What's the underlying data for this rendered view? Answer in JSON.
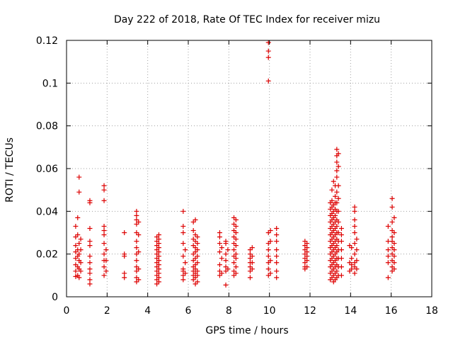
{
  "chart_data": {
    "type": "scatter",
    "title": "Day 222 of 2018, Rate Of TEC Index for receiver mizu",
    "xlabel": "GPS time / hours",
    "ylabel": "ROTI / TECUs",
    "xlim": [
      0,
      18
    ],
    "ylim": [
      0,
      0.12
    ],
    "xticks": [
      0,
      2,
      4,
      6,
      8,
      10,
      12,
      14,
      16,
      18
    ],
    "yticks": [
      0,
      0.02,
      0.04,
      0.06,
      0.08,
      0.1,
      0.12
    ],
    "xtick_labels": [
      "0",
      "2",
      "4",
      "6",
      "8",
      "10",
      "12",
      "14",
      "16",
      "18"
    ],
    "ytick_labels": [
      "0",
      "0.02",
      "0.04",
      "0.06",
      "0.08",
      "0.1",
      "0.12"
    ],
    "grid": true,
    "marker": "+",
    "color": "#dd0000",
    "points": [
      [
        0.45,
        0.0095
      ],
      [
        0.45,
        0.012
      ],
      [
        0.45,
        0.015
      ],
      [
        0.45,
        0.018
      ],
      [
        0.45,
        0.021
      ],
      [
        0.45,
        0.024
      ],
      [
        0.45,
        0.028
      ],
      [
        0.45,
        0.033
      ],
      [
        0.55,
        0.01
      ],
      [
        0.55,
        0.014
      ],
      [
        0.55,
        0.019
      ],
      [
        0.55,
        0.022
      ],
      [
        0.55,
        0.029
      ],
      [
        0.55,
        0.037
      ],
      [
        0.62,
        0.009
      ],
      [
        0.62,
        0.013
      ],
      [
        0.62,
        0.017
      ],
      [
        0.62,
        0.02
      ],
      [
        0.62,
        0.025
      ],
      [
        0.62,
        0.049
      ],
      [
        0.62,
        0.056
      ],
      [
        0.7,
        0.012
      ],
      [
        0.7,
        0.016
      ],
      [
        0.7,
        0.022
      ],
      [
        0.7,
        0.027
      ],
      [
        1.15,
        0.006
      ],
      [
        1.15,
        0.008
      ],
      [
        1.15,
        0.011
      ],
      [
        1.15,
        0.013
      ],
      [
        1.15,
        0.016
      ],
      [
        1.15,
        0.019
      ],
      [
        1.15,
        0.024
      ],
      [
        1.15,
        0.026
      ],
      [
        1.15,
        0.032
      ],
      [
        1.15,
        0.044
      ],
      [
        1.15,
        0.045
      ],
      [
        1.85,
        0.01
      ],
      [
        1.85,
        0.014
      ],
      [
        1.85,
        0.017
      ],
      [
        1.85,
        0.02
      ],
      [
        1.85,
        0.025
      ],
      [
        1.85,
        0.029
      ],
      [
        1.85,
        0.031
      ],
      [
        1.85,
        0.033
      ],
      [
        1.85,
        0.045
      ],
      [
        1.85,
        0.05
      ],
      [
        1.85,
        0.052
      ],
      [
        1.95,
        0.012
      ],
      [
        1.95,
        0.017
      ],
      [
        1.95,
        0.022
      ],
      [
        2.85,
        0.009
      ],
      [
        2.85,
        0.011
      ],
      [
        2.85,
        0.019
      ],
      [
        2.85,
        0.02
      ],
      [
        2.85,
        0.03
      ],
      [
        3.45,
        0.007
      ],
      [
        3.45,
        0.009
      ],
      [
        3.45,
        0.012
      ],
      [
        3.45,
        0.014
      ],
      [
        3.45,
        0.017
      ],
      [
        3.45,
        0.02
      ],
      [
        3.45,
        0.023
      ],
      [
        3.45,
        0.026
      ],
      [
        3.45,
        0.03
      ],
      [
        3.45,
        0.034
      ],
      [
        3.45,
        0.036
      ],
      [
        3.45,
        0.038
      ],
      [
        3.45,
        0.04
      ],
      [
        3.55,
        0.008
      ],
      [
        3.55,
        0.013
      ],
      [
        3.55,
        0.021
      ],
      [
        3.55,
        0.029
      ],
      [
        3.55,
        0.035
      ],
      [
        4.45,
        0.006
      ],
      [
        4.45,
        0.008
      ],
      [
        4.45,
        0.01
      ],
      [
        4.45,
        0.012
      ],
      [
        4.45,
        0.014
      ],
      [
        4.45,
        0.016
      ],
      [
        4.45,
        0.018
      ],
      [
        4.45,
        0.02
      ],
      [
        4.45,
        0.022
      ],
      [
        4.45,
        0.024
      ],
      [
        4.45,
        0.026
      ],
      [
        4.45,
        0.028
      ],
      [
        4.55,
        0.007
      ],
      [
        4.55,
        0.009
      ],
      [
        4.55,
        0.011
      ],
      [
        4.55,
        0.013
      ],
      [
        4.55,
        0.015
      ],
      [
        4.55,
        0.017
      ],
      [
        4.55,
        0.019
      ],
      [
        4.55,
        0.021
      ],
      [
        4.55,
        0.023
      ],
      [
        4.55,
        0.025
      ],
      [
        4.55,
        0.027
      ],
      [
        4.55,
        0.029
      ],
      [
        5.75,
        0.008
      ],
      [
        5.75,
        0.01
      ],
      [
        5.75,
        0.012
      ],
      [
        5.75,
        0.013
      ],
      [
        5.75,
        0.019
      ],
      [
        5.75,
        0.025
      ],
      [
        5.75,
        0.03
      ],
      [
        5.75,
        0.033
      ],
      [
        5.75,
        0.04
      ],
      [
        5.85,
        0.011
      ],
      [
        5.85,
        0.016
      ],
      [
        5.85,
        0.022
      ],
      [
        6.25,
        0.008
      ],
      [
        6.25,
        0.01
      ],
      [
        6.25,
        0.012
      ],
      [
        6.25,
        0.014
      ],
      [
        6.25,
        0.017
      ],
      [
        6.25,
        0.02
      ],
      [
        6.25,
        0.024
      ],
      [
        6.25,
        0.027
      ],
      [
        6.25,
        0.031
      ],
      [
        6.25,
        0.035
      ],
      [
        6.35,
        0.006
      ],
      [
        6.35,
        0.009
      ],
      [
        6.35,
        0.011
      ],
      [
        6.35,
        0.013
      ],
      [
        6.35,
        0.015
      ],
      [
        6.35,
        0.018
      ],
      [
        6.35,
        0.021
      ],
      [
        6.35,
        0.023
      ],
      [
        6.35,
        0.026
      ],
      [
        6.35,
        0.029
      ],
      [
        6.35,
        0.036
      ],
      [
        6.45,
        0.007
      ],
      [
        6.45,
        0.01
      ],
      [
        6.45,
        0.012
      ],
      [
        6.45,
        0.016
      ],
      [
        6.45,
        0.019
      ],
      [
        6.45,
        0.022
      ],
      [
        6.45,
        0.025
      ],
      [
        6.45,
        0.028
      ],
      [
        7.55,
        0.01
      ],
      [
        7.55,
        0.012
      ],
      [
        7.55,
        0.015
      ],
      [
        7.55,
        0.021
      ],
      [
        7.55,
        0.025
      ],
      [
        7.55,
        0.028
      ],
      [
        7.55,
        0.03
      ],
      [
        7.65,
        0.011
      ],
      [
        7.65,
        0.018
      ],
      [
        7.65,
        0.023
      ],
      [
        7.85,
        0.0055
      ],
      [
        7.85,
        0.012
      ],
      [
        7.85,
        0.014
      ],
      [
        7.85,
        0.017
      ],
      [
        7.85,
        0.02
      ],
      [
        7.85,
        0.025
      ],
      [
        7.85,
        0.026
      ],
      [
        7.95,
        0.013
      ],
      [
        7.95,
        0.022
      ],
      [
        8.25,
        0.01
      ],
      [
        8.25,
        0.012
      ],
      [
        8.25,
        0.016
      ],
      [
        8.25,
        0.019
      ],
      [
        8.25,
        0.022
      ],
      [
        8.25,
        0.025
      ],
      [
        8.25,
        0.028
      ],
      [
        8.25,
        0.031
      ],
      [
        8.25,
        0.034
      ],
      [
        8.25,
        0.037
      ],
      [
        8.35,
        0.011
      ],
      [
        8.35,
        0.014
      ],
      [
        8.35,
        0.018
      ],
      [
        8.35,
        0.02
      ],
      [
        8.35,
        0.024
      ],
      [
        8.35,
        0.027
      ],
      [
        8.35,
        0.03
      ],
      [
        8.35,
        0.033
      ],
      [
        8.35,
        0.036
      ],
      [
        9.05,
        0.009
      ],
      [
        9.05,
        0.012
      ],
      [
        9.05,
        0.014
      ],
      [
        9.05,
        0.016
      ],
      [
        9.05,
        0.018
      ],
      [
        9.05,
        0.02
      ],
      [
        9.05,
        0.022
      ],
      [
        9.15,
        0.013
      ],
      [
        9.15,
        0.016
      ],
      [
        9.15,
        0.019
      ],
      [
        9.15,
        0.023
      ],
      [
        9.95,
        0.01
      ],
      [
        9.95,
        0.013
      ],
      [
        9.95,
        0.016
      ],
      [
        9.95,
        0.019
      ],
      [
        9.95,
        0.022
      ],
      [
        9.95,
        0.025
      ],
      [
        9.95,
        0.03
      ],
      [
        9.95,
        0.101
      ],
      [
        9.95,
        0.112
      ],
      [
        9.95,
        0.115
      ],
      [
        9.95,
        0.119
      ],
      [
        10.05,
        0.011
      ],
      [
        10.05,
        0.017
      ],
      [
        10.05,
        0.026
      ],
      [
        10.05,
        0.031
      ],
      [
        10.35,
        0.009
      ],
      [
        10.35,
        0.012
      ],
      [
        10.35,
        0.016
      ],
      [
        10.35,
        0.019
      ],
      [
        10.35,
        0.022
      ],
      [
        10.35,
        0.026
      ],
      [
        10.35,
        0.029
      ],
      [
        10.35,
        0.032
      ],
      [
        11.75,
        0.013
      ],
      [
        11.75,
        0.014
      ],
      [
        11.75,
        0.016
      ],
      [
        11.75,
        0.018
      ],
      [
        11.75,
        0.02
      ],
      [
        11.75,
        0.022
      ],
      [
        11.75,
        0.024
      ],
      [
        11.75,
        0.026
      ],
      [
        11.85,
        0.014
      ],
      [
        11.85,
        0.017
      ],
      [
        11.85,
        0.019
      ],
      [
        11.85,
        0.021
      ],
      [
        11.85,
        0.023
      ],
      [
        11.85,
        0.025
      ],
      [
        13.0,
        0.008
      ],
      [
        13.0,
        0.011
      ],
      [
        13.0,
        0.014
      ],
      [
        13.0,
        0.017
      ],
      [
        13.0,
        0.02
      ],
      [
        13.0,
        0.023
      ],
      [
        13.0,
        0.026
      ],
      [
        13.0,
        0.029
      ],
      [
        13.0,
        0.032
      ],
      [
        13.0,
        0.035
      ],
      [
        13.0,
        0.038
      ],
      [
        13.0,
        0.041
      ],
      [
        13.0,
        0.044
      ],
      [
        13.08,
        0.009
      ],
      [
        13.08,
        0.012
      ],
      [
        13.08,
        0.015
      ],
      [
        13.08,
        0.018
      ],
      [
        13.08,
        0.021
      ],
      [
        13.08,
        0.024
      ],
      [
        13.08,
        0.027
      ],
      [
        13.08,
        0.03
      ],
      [
        13.08,
        0.033
      ],
      [
        13.08,
        0.036
      ],
      [
        13.08,
        0.039
      ],
      [
        13.08,
        0.042
      ],
      [
        13.08,
        0.045
      ],
      [
        13.08,
        0.05
      ],
      [
        13.16,
        0.007
      ],
      [
        13.16,
        0.01
      ],
      [
        13.16,
        0.013
      ],
      [
        13.16,
        0.016
      ],
      [
        13.16,
        0.019
      ],
      [
        13.16,
        0.022
      ],
      [
        13.16,
        0.025
      ],
      [
        13.16,
        0.028
      ],
      [
        13.16,
        0.031
      ],
      [
        13.16,
        0.034
      ],
      [
        13.16,
        0.037
      ],
      [
        13.16,
        0.04
      ],
      [
        13.16,
        0.043
      ],
      [
        13.16,
        0.054
      ],
      [
        13.24,
        0.008
      ],
      [
        13.24,
        0.011
      ],
      [
        13.24,
        0.014
      ],
      [
        13.24,
        0.017
      ],
      [
        13.24,
        0.02
      ],
      [
        13.24,
        0.023
      ],
      [
        13.24,
        0.026
      ],
      [
        13.24,
        0.029
      ],
      [
        13.24,
        0.032
      ],
      [
        13.24,
        0.035
      ],
      [
        13.24,
        0.038
      ],
      [
        13.24,
        0.041
      ],
      [
        13.24,
        0.044
      ],
      [
        13.24,
        0.047
      ],
      [
        13.24,
        0.052
      ],
      [
        13.32,
        0.009
      ],
      [
        13.32,
        0.012
      ],
      [
        13.32,
        0.015
      ],
      [
        13.32,
        0.018
      ],
      [
        13.32,
        0.021
      ],
      [
        13.32,
        0.024
      ],
      [
        13.32,
        0.027
      ],
      [
        13.32,
        0.03
      ],
      [
        13.32,
        0.033
      ],
      [
        13.32,
        0.036
      ],
      [
        13.32,
        0.04
      ],
      [
        13.32,
        0.044
      ],
      [
        13.32,
        0.049
      ],
      [
        13.32,
        0.056
      ],
      [
        13.32,
        0.059
      ],
      [
        13.32,
        0.063
      ],
      [
        13.32,
        0.066
      ],
      [
        13.32,
        0.069
      ],
      [
        13.4,
        0.01
      ],
      [
        13.4,
        0.014
      ],
      [
        13.4,
        0.018
      ],
      [
        13.4,
        0.022
      ],
      [
        13.4,
        0.026
      ],
      [
        13.4,
        0.03
      ],
      [
        13.4,
        0.035
      ],
      [
        13.4,
        0.04
      ],
      [
        13.4,
        0.046
      ],
      [
        13.4,
        0.052
      ],
      [
        13.4,
        0.061
      ],
      [
        13.4,
        0.067
      ],
      [
        13.55,
        0.01
      ],
      [
        13.55,
        0.014
      ],
      [
        13.55,
        0.018
      ],
      [
        13.55,
        0.022
      ],
      [
        13.55,
        0.026
      ],
      [
        13.55,
        0.029
      ],
      [
        13.55,
        0.032
      ],
      [
        13.95,
        0.012
      ],
      [
        13.95,
        0.016
      ],
      [
        13.95,
        0.024
      ],
      [
        14.05,
        0.013
      ],
      [
        14.05,
        0.015
      ],
      [
        14.05,
        0.018
      ],
      [
        14.05,
        0.023
      ],
      [
        14.2,
        0.011
      ],
      [
        14.2,
        0.014
      ],
      [
        14.2,
        0.016
      ],
      [
        14.2,
        0.02
      ],
      [
        14.2,
        0.025
      ],
      [
        14.2,
        0.03
      ],
      [
        14.2,
        0.033
      ],
      [
        14.2,
        0.036
      ],
      [
        14.2,
        0.04
      ],
      [
        14.2,
        0.042
      ],
      [
        14.3,
        0.013
      ],
      [
        14.3,
        0.017
      ],
      [
        14.3,
        0.022
      ],
      [
        14.3,
        0.027
      ],
      [
        15.85,
        0.009
      ],
      [
        15.85,
        0.016
      ],
      [
        15.85,
        0.019
      ],
      [
        15.85,
        0.022
      ],
      [
        15.85,
        0.026
      ],
      [
        15.85,
        0.033
      ],
      [
        16.05,
        0.012
      ],
      [
        16.05,
        0.014
      ],
      [
        16.05,
        0.017
      ],
      [
        16.05,
        0.02
      ],
      [
        16.05,
        0.023
      ],
      [
        16.05,
        0.026
      ],
      [
        16.05,
        0.028
      ],
      [
        16.05,
        0.031
      ],
      [
        16.05,
        0.035
      ],
      [
        16.05,
        0.042
      ],
      [
        16.05,
        0.046
      ],
      [
        16.15,
        0.013
      ],
      [
        16.15,
        0.016
      ],
      [
        16.15,
        0.019
      ],
      [
        16.15,
        0.022
      ],
      [
        16.15,
        0.025
      ],
      [
        16.15,
        0.03
      ],
      [
        16.15,
        0.037
      ]
    ]
  }
}
